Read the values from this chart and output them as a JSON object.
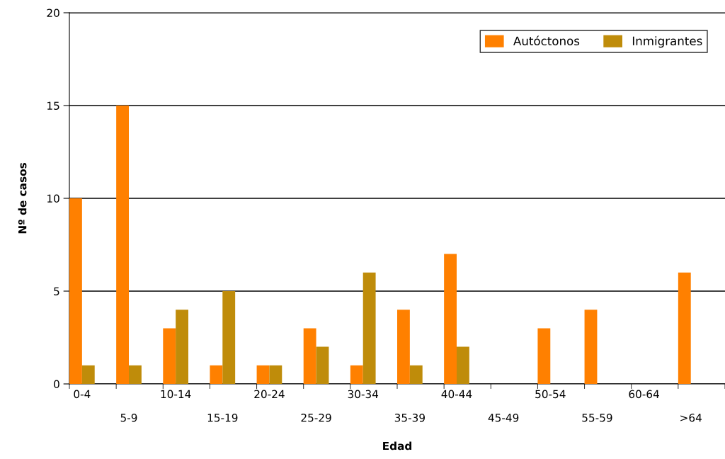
{
  "chart_data": {
    "type": "bar",
    "xlabel": "Edad",
    "ylabel": "Nº de casos",
    "categories": [
      "0-4",
      "5-9",
      "10-14",
      "15-19",
      "20-24",
      "25-29",
      "30-34",
      "35-39",
      "40-44",
      "45-49",
      "50-54",
      "55-59",
      "60-64",
      ">64"
    ],
    "series": [
      {
        "name": "Autóctonos",
        "color": "#ff8000",
        "values": [
          10,
          15,
          3,
          1,
          1,
          3,
          1,
          4,
          7,
          0,
          3,
          4,
          0,
          6
        ]
      },
      {
        "name": "Inmigrantes",
        "color": "#bf8c0a",
        "values": [
          1,
          1,
          4,
          5,
          1,
          2,
          6,
          1,
          2,
          0,
          0,
          0,
          0,
          0
        ]
      }
    ],
    "ylim": [
      0,
      20
    ],
    "yticks": [
      0,
      5,
      10,
      15,
      20
    ],
    "grid": "y",
    "legend": "top right"
  }
}
